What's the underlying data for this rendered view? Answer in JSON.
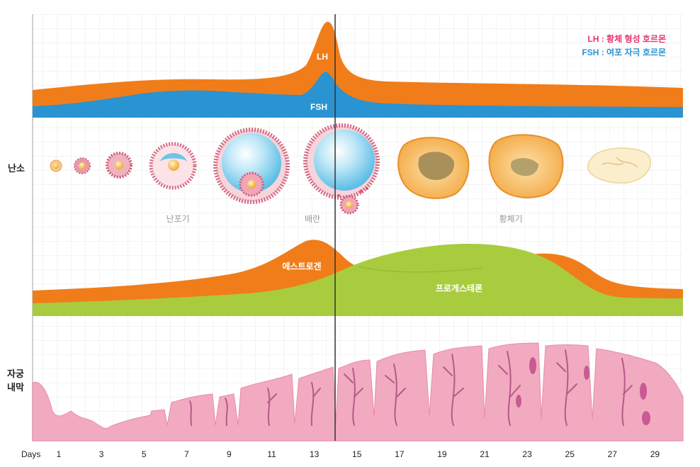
{
  "legend": {
    "lh": "LH : 황체 형성 호르몬",
    "fsh": "FSH : 여포 자극 호르몬"
  },
  "hormones": {
    "lh_label": "LH",
    "fsh_label": "FSH",
    "estrogen_label": "에스트로겐",
    "progesterone_label": "프로게스테론"
  },
  "rows": {
    "ovary": "난소",
    "endometrium_line1": "자궁",
    "endometrium_line2": "내막"
  },
  "phases": {
    "follicular": "난포기",
    "ovulation": "배란",
    "luteal": "황체기"
  },
  "axis": {
    "label": "Days",
    "ticks": [
      "1",
      "3",
      "5",
      "7",
      "9",
      "11",
      "13",
      "15",
      "17",
      "19",
      "21",
      "23",
      "25",
      "27",
      "29"
    ]
  },
  "colors": {
    "lh": "#f07d1a",
    "fsh": "#2a93d1",
    "estrogen": "#f07d1a",
    "progesterone": "#a9cc3e",
    "legend_lh": "#e8336d",
    "legend_fsh": "#2a93d1",
    "endometrium": "#f2aac0",
    "grid": "#e6e6e6"
  }
}
